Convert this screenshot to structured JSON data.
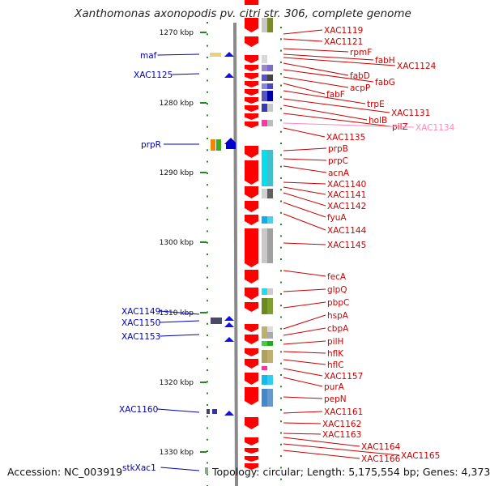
{
  "title": "Xanthomonas axonopodis pv. citri str. 306, complete genome",
  "footer": {
    "accession": "Accession: NC_003919",
    "summary": "Topology: circular; Length: 5,175,554 bp; Genes: 4,373"
  },
  "kbp_labels": [
    "1270 kbp",
    "1280 kbp",
    "1290 kbp",
    "1300 kbp",
    "1310 kbp",
    "1320 kbp",
    "1330 kbp"
  ],
  "left_genes": [
    "maf",
    "XAC1125",
    "prpR",
    "XAC1149",
    "XAC1150",
    "XAC1153",
    "XAC1160",
    "stkXac1"
  ],
  "right_genes": [
    "XAC1119",
    "XAC1121",
    "rpmF",
    "fabH",
    "XAC1124",
    "fabD",
    "fabG",
    "acpP",
    "fabF",
    "trpE",
    "XAC1131",
    "holB",
    "pilZ",
    "XAC1134",
    "XAC1135",
    "prpB",
    "prpC",
    "acnA",
    "XAC1140",
    "XAC1141",
    "XAC1142",
    "fyuA",
    "XAC1144",
    "XAC1145",
    "fecA",
    "glpQ",
    "pbpC",
    "hspA",
    "cbpA",
    "pilH",
    "hflK",
    "hflC",
    "XAC1157",
    "purA",
    "pepN",
    "XAC1161",
    "XAC1162",
    "XAC1163",
    "XAC1164",
    "XAC1166",
    "XAC1165"
  ],
  "colors": {
    "strand_arrow": "#ff0000",
    "left_label": "#0000bb",
    "right_label": "#cc0000",
    "faded_label": "#ff88bb",
    "tick_green": "#228822"
  }
}
